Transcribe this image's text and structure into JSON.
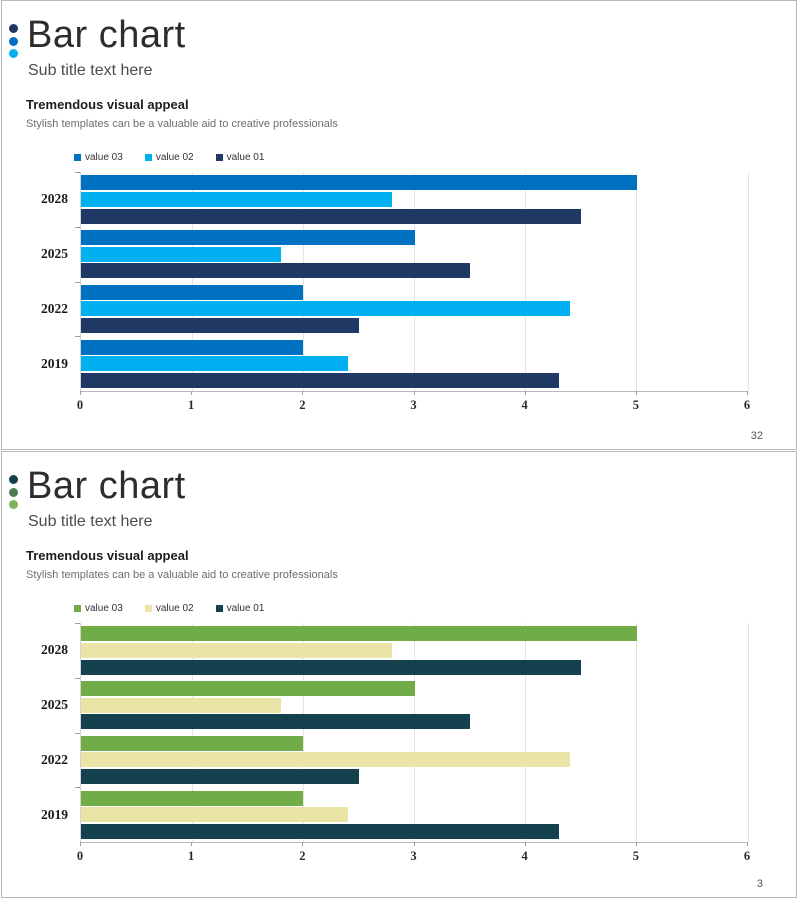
{
  "slides": [
    {
      "title": "Bar chart",
      "subtitle": "Sub title text here",
      "heading": "Tremendous visual appeal",
      "description": "Stylish templates can be a valuable aid to creative professionals",
      "page_number": "32",
      "accent_dots": [
        "#1F3864",
        "#0070C0",
        "#00B0F0"
      ]
    },
    {
      "title": "Bar chart",
      "subtitle": "Sub title text here",
      "heading": "Tremendous visual appeal",
      "description": "Stylish templates can be a valuable aid to creative professionals",
      "page_number": "3",
      "accent_dots": [
        "#15414F",
        "#4E7D52",
        "#7CB45C"
      ]
    }
  ],
  "chart_data": [
    {
      "type": "bar",
      "orientation": "horizontal",
      "title": "",
      "categories": [
        "2028",
        "2025",
        "2022",
        "2019"
      ],
      "series": [
        {
          "name": "value 03",
          "color": "#0070C0",
          "values": [
            5.0,
            3.0,
            2.0,
            2.0
          ]
        },
        {
          "name": "value 02",
          "color": "#00B0F0",
          "values": [
            2.8,
            1.8,
            4.4,
            2.4
          ]
        },
        {
          "name": "value 01",
          "color": "#1F3864",
          "values": [
            4.5,
            3.5,
            2.5,
            4.3
          ]
        }
      ],
      "xlim": [
        0,
        6
      ],
      "xticks": [
        0,
        1,
        2,
        3,
        4,
        5,
        6
      ],
      "grid": true,
      "legend_position": "top-left"
    },
    {
      "type": "bar",
      "orientation": "horizontal",
      "title": "",
      "categories": [
        "2028",
        "2025",
        "2022",
        "2019"
      ],
      "series": [
        {
          "name": "value 03",
          "color": "#70AD47",
          "values": [
            5.0,
            3.0,
            2.0,
            2.0
          ]
        },
        {
          "name": "value 02",
          "color": "#EAE5A7",
          "values": [
            2.8,
            1.8,
            4.4,
            2.4
          ]
        },
        {
          "name": "value 01",
          "color": "#15414F",
          "values": [
            4.5,
            3.5,
            2.5,
            4.3
          ]
        }
      ],
      "xlim": [
        0,
        6
      ],
      "xticks": [
        0,
        1,
        2,
        3,
        4,
        5,
        6
      ],
      "grid": true,
      "legend_position": "top-left"
    }
  ]
}
